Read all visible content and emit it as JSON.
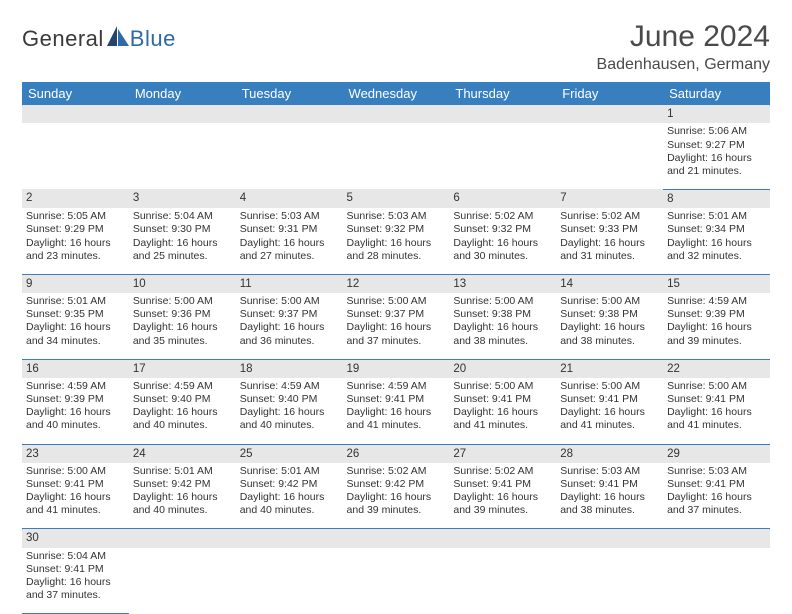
{
  "logo": {
    "part1": "General",
    "part2": "Blue"
  },
  "title": "June 2024",
  "location": "Badenhausen, Germany",
  "colors": {
    "header_bg": "#387fbf",
    "header_text": "#ffffff",
    "daynum_bg": "#e7e7e7",
    "row_divider": "#387fbf",
    "text": "#333333",
    "logo_blue": "#2f6aa6",
    "logo_dark": "#26436b"
  },
  "day_headers": [
    "Sunday",
    "Monday",
    "Tuesday",
    "Wednesday",
    "Thursday",
    "Friday",
    "Saturday"
  ],
  "weeks": [
    [
      null,
      null,
      null,
      null,
      null,
      null,
      {
        "n": "1",
        "sunrise": "Sunrise: 5:06 AM",
        "sunset": "Sunset: 9:27 PM",
        "d1": "Daylight: 16 hours",
        "d2": "and 21 minutes."
      }
    ],
    [
      {
        "n": "2",
        "sunrise": "Sunrise: 5:05 AM",
        "sunset": "Sunset: 9:29 PM",
        "d1": "Daylight: 16 hours",
        "d2": "and 23 minutes."
      },
      {
        "n": "3",
        "sunrise": "Sunrise: 5:04 AM",
        "sunset": "Sunset: 9:30 PM",
        "d1": "Daylight: 16 hours",
        "d2": "and 25 minutes."
      },
      {
        "n": "4",
        "sunrise": "Sunrise: 5:03 AM",
        "sunset": "Sunset: 9:31 PM",
        "d1": "Daylight: 16 hours",
        "d2": "and 27 minutes."
      },
      {
        "n": "5",
        "sunrise": "Sunrise: 5:03 AM",
        "sunset": "Sunset: 9:32 PM",
        "d1": "Daylight: 16 hours",
        "d2": "and 28 minutes."
      },
      {
        "n": "6",
        "sunrise": "Sunrise: 5:02 AM",
        "sunset": "Sunset: 9:32 PM",
        "d1": "Daylight: 16 hours",
        "d2": "and 30 minutes."
      },
      {
        "n": "7",
        "sunrise": "Sunrise: 5:02 AM",
        "sunset": "Sunset: 9:33 PM",
        "d1": "Daylight: 16 hours",
        "d2": "and 31 minutes."
      },
      {
        "n": "8",
        "sunrise": "Sunrise: 5:01 AM",
        "sunset": "Sunset: 9:34 PM",
        "d1": "Daylight: 16 hours",
        "d2": "and 32 minutes."
      }
    ],
    [
      {
        "n": "9",
        "sunrise": "Sunrise: 5:01 AM",
        "sunset": "Sunset: 9:35 PM",
        "d1": "Daylight: 16 hours",
        "d2": "and 34 minutes."
      },
      {
        "n": "10",
        "sunrise": "Sunrise: 5:00 AM",
        "sunset": "Sunset: 9:36 PM",
        "d1": "Daylight: 16 hours",
        "d2": "and 35 minutes."
      },
      {
        "n": "11",
        "sunrise": "Sunrise: 5:00 AM",
        "sunset": "Sunset: 9:37 PM",
        "d1": "Daylight: 16 hours",
        "d2": "and 36 minutes."
      },
      {
        "n": "12",
        "sunrise": "Sunrise: 5:00 AM",
        "sunset": "Sunset: 9:37 PM",
        "d1": "Daylight: 16 hours",
        "d2": "and 37 minutes."
      },
      {
        "n": "13",
        "sunrise": "Sunrise: 5:00 AM",
        "sunset": "Sunset: 9:38 PM",
        "d1": "Daylight: 16 hours",
        "d2": "and 38 minutes."
      },
      {
        "n": "14",
        "sunrise": "Sunrise: 5:00 AM",
        "sunset": "Sunset: 9:38 PM",
        "d1": "Daylight: 16 hours",
        "d2": "and 38 minutes."
      },
      {
        "n": "15",
        "sunrise": "Sunrise: 4:59 AM",
        "sunset": "Sunset: 9:39 PM",
        "d1": "Daylight: 16 hours",
        "d2": "and 39 minutes."
      }
    ],
    [
      {
        "n": "16",
        "sunrise": "Sunrise: 4:59 AM",
        "sunset": "Sunset: 9:39 PM",
        "d1": "Daylight: 16 hours",
        "d2": "and 40 minutes."
      },
      {
        "n": "17",
        "sunrise": "Sunrise: 4:59 AM",
        "sunset": "Sunset: 9:40 PM",
        "d1": "Daylight: 16 hours",
        "d2": "and 40 minutes."
      },
      {
        "n": "18",
        "sunrise": "Sunrise: 4:59 AM",
        "sunset": "Sunset: 9:40 PM",
        "d1": "Daylight: 16 hours",
        "d2": "and 40 minutes."
      },
      {
        "n": "19",
        "sunrise": "Sunrise: 4:59 AM",
        "sunset": "Sunset: 9:41 PM",
        "d1": "Daylight: 16 hours",
        "d2": "and 41 minutes."
      },
      {
        "n": "20",
        "sunrise": "Sunrise: 5:00 AM",
        "sunset": "Sunset: 9:41 PM",
        "d1": "Daylight: 16 hours",
        "d2": "and 41 minutes."
      },
      {
        "n": "21",
        "sunrise": "Sunrise: 5:00 AM",
        "sunset": "Sunset: 9:41 PM",
        "d1": "Daylight: 16 hours",
        "d2": "and 41 minutes."
      },
      {
        "n": "22",
        "sunrise": "Sunrise: 5:00 AM",
        "sunset": "Sunset: 9:41 PM",
        "d1": "Daylight: 16 hours",
        "d2": "and 41 minutes."
      }
    ],
    [
      {
        "n": "23",
        "sunrise": "Sunrise: 5:00 AM",
        "sunset": "Sunset: 9:41 PM",
        "d1": "Daylight: 16 hours",
        "d2": "and 41 minutes."
      },
      {
        "n": "24",
        "sunrise": "Sunrise: 5:01 AM",
        "sunset": "Sunset: 9:42 PM",
        "d1": "Daylight: 16 hours",
        "d2": "and 40 minutes."
      },
      {
        "n": "25",
        "sunrise": "Sunrise: 5:01 AM",
        "sunset": "Sunset: 9:42 PM",
        "d1": "Daylight: 16 hours",
        "d2": "and 40 minutes."
      },
      {
        "n": "26",
        "sunrise": "Sunrise: 5:02 AM",
        "sunset": "Sunset: 9:42 PM",
        "d1": "Daylight: 16 hours",
        "d2": "and 39 minutes."
      },
      {
        "n": "27",
        "sunrise": "Sunrise: 5:02 AM",
        "sunset": "Sunset: 9:41 PM",
        "d1": "Daylight: 16 hours",
        "d2": "and 39 minutes."
      },
      {
        "n": "28",
        "sunrise": "Sunrise: 5:03 AM",
        "sunset": "Sunset: 9:41 PM",
        "d1": "Daylight: 16 hours",
        "d2": "and 38 minutes."
      },
      {
        "n": "29",
        "sunrise": "Sunrise: 5:03 AM",
        "sunset": "Sunset: 9:41 PM",
        "d1": "Daylight: 16 hours",
        "d2": "and 37 minutes."
      }
    ],
    [
      {
        "n": "30",
        "sunrise": "Sunrise: 5:04 AM",
        "sunset": "Sunset: 9:41 PM",
        "d1": "Daylight: 16 hours",
        "d2": "and 37 minutes."
      },
      null,
      null,
      null,
      null,
      null,
      null
    ]
  ]
}
